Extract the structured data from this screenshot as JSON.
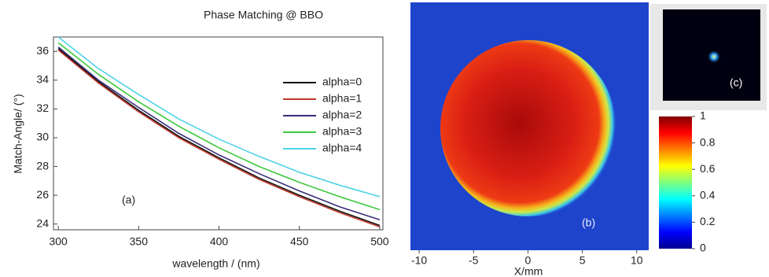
{
  "chart_data": [
    {
      "type": "line",
      "title": "Phase Matching @ BBO",
      "x_label": "wavelength / (nm)",
      "y_label": "Match-Angle/ (°)",
      "annotation": "(a)",
      "x": [
        300,
        325,
        350,
        375,
        400,
        425,
        450,
        475,
        500
      ],
      "series": [
        {
          "name": "alpha=0",
          "color": "#111111",
          "values": [
            36.2,
            33.9,
            31.9,
            30.1,
            28.6,
            27.2,
            26.0,
            24.9,
            23.9
          ]
        },
        {
          "name": "alpha=1",
          "color": "#c0392b",
          "values": [
            36.1,
            33.8,
            31.8,
            30.0,
            28.5,
            27.1,
            25.9,
            24.8,
            23.8
          ]
        },
        {
          "name": "alpha=2",
          "color": "#3b2f7a",
          "values": [
            36.3,
            34.0,
            32.1,
            30.3,
            28.8,
            27.5,
            26.3,
            25.2,
            24.3
          ]
        },
        {
          "name": "alpha=3",
          "color": "#3cc83c",
          "values": [
            36.6,
            34.4,
            32.5,
            30.8,
            29.3,
            28.0,
            26.9,
            25.9,
            25.0
          ]
        },
        {
          "name": "alpha=4",
          "color": "#4fd2e6",
          "values": [
            37.0,
            34.8,
            33.0,
            31.3,
            29.9,
            28.7,
            27.6,
            26.7,
            25.9
          ]
        }
      ],
      "xlim": [
        297,
        502
      ],
      "xticks": [
        300,
        350,
        400,
        450,
        500
      ],
      "ylim": [
        23.6,
        37
      ],
      "yticks": [
        24,
        26,
        28,
        30,
        32,
        34,
        36
      ]
    },
    {
      "type": "heatmap",
      "x_label": "X/mm",
      "annotation": "(b)",
      "inset_annotation": "(c)",
      "xlim": [
        -10.8,
        11.1
      ],
      "xticks": [
        -10,
        -5,
        0,
        5,
        10
      ],
      "colorbar_lim": [
        0,
        1
      ],
      "colorbar_ticks": [
        0,
        0.2,
        0.4,
        0.6,
        0.8,
        1
      ]
    }
  ]
}
